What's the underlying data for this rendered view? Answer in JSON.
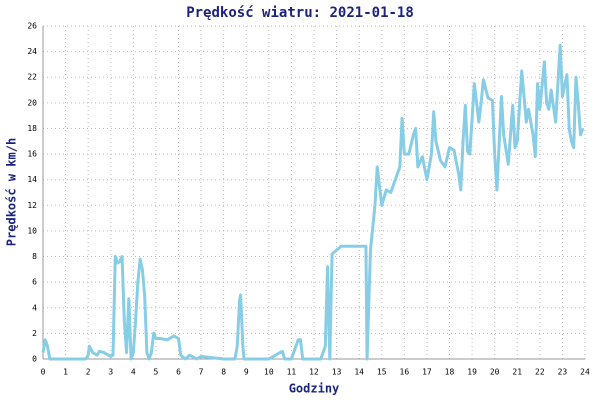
{
  "chart_data": {
    "type": "line",
    "title": "Prędkość wiatru: 2021-01-18",
    "xlabel": "Godziny",
    "ylabel": "Prędkość w km/h",
    "color": "#87cde6",
    "grid": true,
    "xlim": [
      0,
      24
    ],
    "ylim": [
      0,
      26
    ],
    "xticks": [
      0,
      1,
      2,
      3,
      4,
      5,
      6,
      7,
      8,
      9,
      10,
      11,
      12,
      13,
      14,
      15,
      16,
      17,
      18,
      19,
      20,
      21,
      22,
      23,
      24
    ],
    "yticks": [
      0,
      2,
      4,
      6,
      8,
      10,
      12,
      14,
      16,
      18,
      20,
      22,
      24,
      26
    ],
    "x": [
      0,
      0.1,
      0.2,
      0.3,
      0.5,
      1.9,
      2.0,
      2.05,
      2.2,
      2.4,
      2.5,
      2.7,
      3.0,
      3.1,
      3.2,
      3.3,
      3.4,
      3.5,
      3.6,
      3.7,
      3.8,
      3.9,
      4.0,
      4.1,
      4.2,
      4.3,
      4.4,
      4.5,
      4.6,
      4.7,
      4.8,
      4.9,
      5.0,
      5.2,
      5.5,
      5.8,
      6.0,
      6.1,
      6.3,
      6.5,
      6.8,
      7.0,
      8.0,
      8.5,
      8.6,
      8.7,
      8.75,
      8.85,
      8.9,
      10.0,
      10.2,
      10.5,
      10.6,
      10.7,
      11.0,
      11.3,
      11.4,
      11.5,
      12.3,
      12.5,
      12.6,
      12.7,
      12.8,
      13.0,
      13.2,
      14.3,
      14.35,
      14.5,
      14.7,
      14.8,
      15.0,
      15.2,
      15.4,
      15.6,
      15.8,
      15.9,
      16.0,
      16.2,
      16.4,
      16.5,
      16.6,
      16.8,
      17.0,
      17.2,
      17.3,
      17.4,
      17.6,
      17.8,
      18.0,
      18.2,
      18.4,
      18.5,
      18.6,
      18.7,
      18.8,
      18.9,
      19.1,
      19.3,
      19.4,
      19.5,
      19.7,
      19.9,
      20.0,
      20.1,
      20.3,
      20.4,
      20.6,
      20.8,
      20.9,
      21.0,
      21.2,
      21.4,
      21.5,
      21.7,
      21.8,
      21.9,
      22.0,
      22.2,
      22.3,
      22.4,
      22.5,
      22.7,
      22.9,
      23.0,
      23.2,
      23.3,
      23.4,
      23.5,
      23.6,
      23.7,
      23.8,
      23.9
    ],
    "values": [
      0.5,
      1.5,
      1.0,
      0,
      0,
      0,
      0.3,
      1.0,
      0.5,
      0.3,
      0.6,
      0.5,
      0.2,
      0.3,
      8,
      7.5,
      7.6,
      8,
      3,
      0.5,
      4.7,
      0,
      0.5,
      3,
      6,
      7.8,
      7,
      5,
      0.5,
      0,
      0.5,
      2,
      1.6,
      1.6,
      1.5,
      1.8,
      1.6,
      0.3,
      0,
      0.3,
      0,
      0.2,
      0,
      0,
      1,
      4.5,
      5,
      1,
      0,
      0,
      0.2,
      0.5,
      0.6,
      0,
      0,
      1.5,
      1.5,
      0,
      0,
      1,
      7.2,
      0,
      8.2,
      8.5,
      8.8,
      8.8,
      0,
      8.5,
      12,
      15,
      12,
      13.2,
      13,
      14,
      15,
      18.8,
      16,
      16,
      17.5,
      18,
      15,
      15.8,
      14,
      16,
      19.3,
      17,
      15.5,
      15,
      16.5,
      16.3,
      14.5,
      13.2,
      17,
      19.8,
      16.2,
      16,
      21.5,
      18.5,
      20,
      21.8,
      20.4,
      20.2,
      16,
      13.2,
      20.5,
      17.5,
      15.2,
      19.8,
      16.5,
      17,
      22.5,
      18.5,
      19.5,
      17.5,
      15.8,
      21.5,
      19.5,
      23.2,
      20,
      19.5,
      21,
      18.5,
      24.5,
      20.5,
      22.2,
      18,
      17,
      16.5,
      22,
      20,
      17.5,
      18
    ]
  }
}
